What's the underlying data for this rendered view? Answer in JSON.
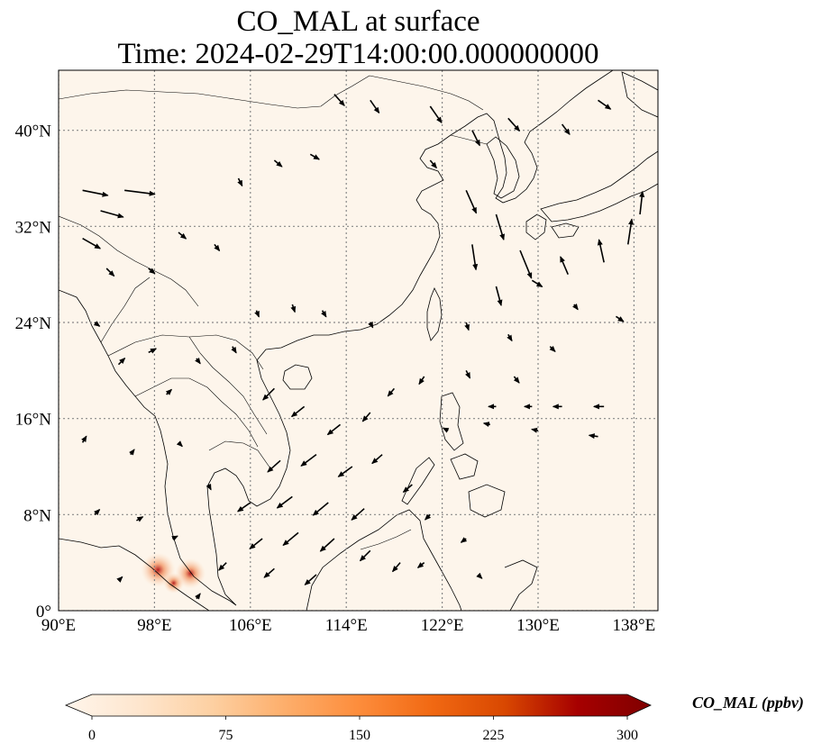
{
  "title": {
    "line1": "CO_MAL at surface",
    "line2": "Time: 2024-02-29T14:00:00.000000000"
  },
  "map": {
    "lon_range": [
      90,
      140
    ],
    "lat_range": [
      0,
      45
    ],
    "gridlines": true,
    "lon_ticks": [
      {
        "value": 90,
        "label": "90°E"
      },
      {
        "value": 98,
        "label": "98°E"
      },
      {
        "value": 106,
        "label": "106°E"
      },
      {
        "value": 114,
        "label": "114°E"
      },
      {
        "value": 122,
        "label": "122°E"
      },
      {
        "value": 130,
        "label": "130°E"
      },
      {
        "value": 138,
        "label": "138°E"
      }
    ],
    "lat_ticks": [
      {
        "value": 0,
        "label": "0°"
      },
      {
        "value": 8,
        "label": "8°N"
      },
      {
        "value": 16,
        "label": "16°N"
      },
      {
        "value": 24,
        "label": "24°N"
      },
      {
        "value": 32,
        "label": "32°N"
      },
      {
        "value": 40,
        "label": "40°N"
      }
    ],
    "background_color": "#fdf5eb",
    "hotspots": [
      {
        "lon": 98.3,
        "lat": 3.4,
        "value": 220
      },
      {
        "lon": 101.0,
        "lat": 3.1,
        "value": 180
      },
      {
        "lon": 99.6,
        "lat": 2.3,
        "value": 90
      }
    ],
    "wind_vectors": [
      {
        "lon": 92.0,
        "lat": 35.0,
        "u": 2.0,
        "v": -0.4
      },
      {
        "lon": 95.5,
        "lat": 35.0,
        "u": 2.4,
        "v": -0.3
      },
      {
        "lon": 93.5,
        "lat": 33.3,
        "u": 1.8,
        "v": -0.5
      },
      {
        "lon": 92.0,
        "lat": 31.0,
        "u": 1.4,
        "v": -0.8
      },
      {
        "lon": 94.0,
        "lat": 28.5,
        "u": 0.6,
        "v": -0.6
      },
      {
        "lon": 97.5,
        "lat": 28.5,
        "u": 0.5,
        "v": -0.4
      },
      {
        "lon": 100.0,
        "lat": 31.5,
        "u": 0.6,
        "v": -0.5
      },
      {
        "lon": 103.0,
        "lat": 30.5,
        "u": 0.4,
        "v": -0.5
      },
      {
        "lon": 105.0,
        "lat": 36.0,
        "u": 0.3,
        "v": -0.6
      },
      {
        "lon": 108.0,
        "lat": 37.5,
        "u": 0.6,
        "v": -0.5
      },
      {
        "lon": 111.0,
        "lat": 38.0,
        "u": 0.7,
        "v": -0.4
      },
      {
        "lon": 113.0,
        "lat": 43.0,
        "u": 0.8,
        "v": -0.9
      },
      {
        "lon": 116.0,
        "lat": 42.5,
        "u": 0.7,
        "v": -1.0
      },
      {
        "lon": 121.0,
        "lat": 42.0,
        "u": 0.9,
        "v": -1.3
      },
      {
        "lon": 124.5,
        "lat": 40.0,
        "u": 0.6,
        "v": -1.2
      },
      {
        "lon": 127.5,
        "lat": 41.0,
        "u": 0.9,
        "v": -1.0
      },
      {
        "lon": 132.0,
        "lat": 40.5,
        "u": 0.6,
        "v": -0.8
      },
      {
        "lon": 135.0,
        "lat": 42.5,
        "u": 1.0,
        "v": -0.7
      },
      {
        "lon": 121.0,
        "lat": 37.5,
        "u": 0.5,
        "v": -0.6
      },
      {
        "lon": 124.0,
        "lat": 35.0,
        "u": 0.8,
        "v": -1.8
      },
      {
        "lon": 126.5,
        "lat": 33.0,
        "u": 0.6,
        "v": -2.0
      },
      {
        "lon": 124.5,
        "lat": 30.5,
        "u": 0.3,
        "v": -2.0
      },
      {
        "lon": 128.5,
        "lat": 30.0,
        "u": 0.9,
        "v": -2.2
      },
      {
        "lon": 126.5,
        "lat": 27.0,
        "u": 0.4,
        "v": -1.5
      },
      {
        "lon": 129.5,
        "lat": 27.5,
        "u": 0.8,
        "v": -0.5
      },
      {
        "lon": 132.5,
        "lat": 28.0,
        "u": -0.6,
        "v": 1.4
      },
      {
        "lon": 135.5,
        "lat": 29.0,
        "u": -0.4,
        "v": 1.8
      },
      {
        "lon": 137.5,
        "lat": 30.5,
        "u": 0.3,
        "v": 2.0
      },
      {
        "lon": 138.5,
        "lat": 33.0,
        "u": 0.2,
        "v": 1.8
      },
      {
        "lon": 133.0,
        "lat": 25.5,
        "u": 0.3,
        "v": -0.4
      },
      {
        "lon": 136.5,
        "lat": 24.5,
        "u": 0.6,
        "v": -0.4
      },
      {
        "lon": 124.0,
        "lat": 24.0,
        "u": 0.2,
        "v": -0.6
      },
      {
        "lon": 127.5,
        "lat": 23.0,
        "u": 0.3,
        "v": -0.5
      },
      {
        "lon": 131.0,
        "lat": 22.0,
        "u": 0.4,
        "v": -0.4
      },
      {
        "lon": 124.0,
        "lat": 20.0,
        "u": 0.3,
        "v": -0.6
      },
      {
        "lon": 128.0,
        "lat": 19.5,
        "u": 0.4,
        "v": -0.5
      },
      {
        "lon": 126.5,
        "lat": 17.0,
        "u": -0.6,
        "v": 0.0
      },
      {
        "lon": 129.5,
        "lat": 17.0,
        "u": -0.6,
        "v": 0.0
      },
      {
        "lon": 132.0,
        "lat": 17.0,
        "u": -0.7,
        "v": 0.0
      },
      {
        "lon": 135.5,
        "lat": 17.0,
        "u": -0.8,
        "v": 0.0
      },
      {
        "lon": 135.0,
        "lat": 14.5,
        "u": -0.7,
        "v": 0.1
      },
      {
        "lon": 130.0,
        "lat": 15.0,
        "u": -0.5,
        "v": 0.1
      },
      {
        "lon": 126.0,
        "lat": 15.5,
        "u": -0.5,
        "v": 0.1
      },
      {
        "lon": 122.5,
        "lat": 15.0,
        "u": -0.4,
        "v": 0.2
      },
      {
        "lon": 118.0,
        "lat": 18.5,
        "u": -0.5,
        "v": -0.6
      },
      {
        "lon": 120.5,
        "lat": 19.5,
        "u": -0.4,
        "v": -0.6
      },
      {
        "lon": 116.0,
        "lat": 16.5,
        "u": -0.6,
        "v": -0.7
      },
      {
        "lon": 113.5,
        "lat": 15.5,
        "u": -1.0,
        "v": -0.8
      },
      {
        "lon": 110.5,
        "lat": 17.0,
        "u": -1.0,
        "v": -0.8
      },
      {
        "lon": 108.0,
        "lat": 18.5,
        "u": -0.9,
        "v": -0.9
      },
      {
        "lon": 111.5,
        "lat": 13.0,
        "u": -1.2,
        "v": -0.9
      },
      {
        "lon": 108.5,
        "lat": 12.5,
        "u": -1.0,
        "v": -0.9
      },
      {
        "lon": 114.5,
        "lat": 12.0,
        "u": -1.1,
        "v": -0.8
      },
      {
        "lon": 117.0,
        "lat": 13.0,
        "u": -0.8,
        "v": -0.7
      },
      {
        "lon": 119.5,
        "lat": 10.5,
        "u": -0.7,
        "v": -0.6
      },
      {
        "lon": 112.5,
        "lat": 9.0,
        "u": -1.2,
        "v": -1.0
      },
      {
        "lon": 109.5,
        "lat": 9.5,
        "u": -1.2,
        "v": -0.9
      },
      {
        "lon": 106.0,
        "lat": 9.0,
        "u": -1.0,
        "v": -0.7
      },
      {
        "lon": 115.5,
        "lat": 8.5,
        "u": -1.0,
        "v": -0.9
      },
      {
        "lon": 113.0,
        "lat": 6.0,
        "u": -1.1,
        "v": -1.0
      },
      {
        "lon": 110.0,
        "lat": 6.5,
        "u": -1.2,
        "v": -1.0
      },
      {
        "lon": 107.0,
        "lat": 6.0,
        "u": -1.0,
        "v": -0.8
      },
      {
        "lon": 116.0,
        "lat": 5.0,
        "u": -0.8,
        "v": -0.8
      },
      {
        "lon": 118.5,
        "lat": 4.0,
        "u": -0.6,
        "v": -0.7
      },
      {
        "lon": 111.5,
        "lat": 3.0,
        "u": -0.9,
        "v": -0.8
      },
      {
        "lon": 108.0,
        "lat": 3.5,
        "u": -0.8,
        "v": -0.7
      },
      {
        "lon": 104.0,
        "lat": 4.0,
        "u": -0.6,
        "v": -0.6
      },
      {
        "lon": 121.0,
        "lat": 8.0,
        "u": -0.4,
        "v": -0.4
      },
      {
        "lon": 124.0,
        "lat": 6.0,
        "u": -0.4,
        "v": -0.3
      },
      {
        "lon": 120.5,
        "lat": 4.0,
        "u": -0.5,
        "v": -0.4
      },
      {
        "lon": 125.0,
        "lat": 3.0,
        "u": 0.3,
        "v": -0.3
      },
      {
        "lon": 93.0,
        "lat": 24.0,
        "u": 0.4,
        "v": -0.3
      },
      {
        "lon": 95.0,
        "lat": 20.5,
        "u": 0.5,
        "v": 0.5
      },
      {
        "lon": 97.5,
        "lat": 21.5,
        "u": 0.6,
        "v": 0.3
      },
      {
        "lon": 99.0,
        "lat": 18.0,
        "u": 0.4,
        "v": 0.4
      },
      {
        "lon": 101.5,
        "lat": 21.0,
        "u": 0.3,
        "v": -0.4
      },
      {
        "lon": 104.5,
        "lat": 22.0,
        "u": 0.3,
        "v": -0.5
      },
      {
        "lon": 106.5,
        "lat": 25.0,
        "u": 0.2,
        "v": -0.5
      },
      {
        "lon": 109.5,
        "lat": 25.5,
        "u": 0.2,
        "v": -0.6
      },
      {
        "lon": 112.0,
        "lat": 25.0,
        "u": 0.3,
        "v": -0.5
      },
      {
        "lon": 116.0,
        "lat": 24.0,
        "u": 0.2,
        "v": -0.4
      },
      {
        "lon": 92.0,
        "lat": 14.0,
        "u": 0.3,
        "v": 0.5
      },
      {
        "lon": 96.0,
        "lat": 13.0,
        "u": 0.3,
        "v": 0.4
      },
      {
        "lon": 100.0,
        "lat": 14.0,
        "u": 0.3,
        "v": -0.3
      },
      {
        "lon": 102.5,
        "lat": 10.5,
        "u": 0.2,
        "v": -0.4
      },
      {
        "lon": 93.0,
        "lat": 8.0,
        "u": 0.4,
        "v": 0.4
      },
      {
        "lon": 96.5,
        "lat": 7.5,
        "u": 0.5,
        "v": 0.3
      },
      {
        "lon": 99.5,
        "lat": 6.0,
        "u": 0.4,
        "v": 0.2
      },
      {
        "lon": 95.0,
        "lat": 2.5,
        "u": 0.3,
        "v": 0.3
      },
      {
        "lon": 101.5,
        "lat": 1.0,
        "u": 0.3,
        "v": 0.4
      }
    ]
  },
  "colorbar": {
    "title": "CO_MAL (ppbv)",
    "min": 0,
    "max": 300,
    "ticks": [
      {
        "value": 0,
        "label": "0"
      },
      {
        "value": 75,
        "label": "75"
      },
      {
        "value": 150,
        "label": "150"
      },
      {
        "value": 225,
        "label": "225"
      },
      {
        "value": 300,
        "label": "300"
      }
    ],
    "extend": "both",
    "colors": [
      "#fff5eb",
      "#fee6ce",
      "#fdd0a2",
      "#fdae6b",
      "#fd8d3c",
      "#f16913",
      "#d94801",
      "#a60000",
      "#7f0000"
    ]
  }
}
